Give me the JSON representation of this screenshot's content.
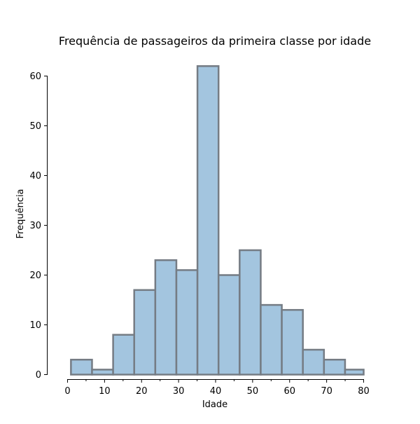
{
  "chart_data": {
    "type": "bar",
    "title": "Frequência de passageiros da primeira classe por idade",
    "xlabel": "Idade",
    "ylabel": "Frequência",
    "bin_edges": [
      0.92,
      6.617,
      12.313,
      18.01,
      23.707,
      29.403,
      35.1,
      40.797,
      46.493,
      52.19,
      57.887,
      63.583,
      69.28,
      74.977,
      80.0
    ],
    "values": [
      3,
      1,
      8,
      17,
      23,
      21,
      62,
      20,
      25,
      14,
      13,
      5,
      3,
      1
    ],
    "xlim": [
      0,
      80
    ],
    "ylim": [
      0,
      60
    ],
    "xticks": [
      0,
      10,
      20,
      30,
      40,
      50,
      60,
      70,
      80
    ],
    "xminor_ticks": [
      5,
      15,
      25,
      35,
      45,
      55,
      65,
      75
    ],
    "yticks": [
      0,
      10,
      20,
      30,
      40,
      50,
      60
    ],
    "bar_color": "#a3c5df",
    "bar_edge_color": "#757c84",
    "grid": false
  }
}
